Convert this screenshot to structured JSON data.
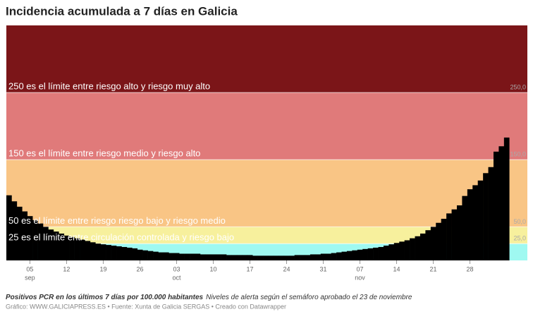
{
  "chart_data": {
    "type": "step-area",
    "title": "Incidencia acumulada a 7 días en Galicia",
    "values": [
      97,
      88,
      80,
      73,
      66,
      60,
      55,
      50,
      46,
      43,
      40,
      37,
      35,
      33,
      31,
      29,
      27,
      25,
      24,
      23,
      22,
      21,
      20,
      19,
      18,
      16,
      15,
      14,
      13,
      12,
      12,
      11,
      11,
      10,
      10,
      10,
      10,
      9,
      9,
      9,
      9,
      9,
      8,
      8,
      8,
      8,
      8,
      7,
      7,
      7,
      7,
      7,
      7,
      7,
      7,
      8,
      8,
      8,
      9,
      9,
      10,
      10,
      11,
      12,
      13,
      14,
      15,
      16,
      17,
      18,
      19,
      20,
      22,
      24,
      26,
      28,
      30,
      33,
      36,
      40,
      45,
      50,
      56,
      62,
      70,
      76,
      82,
      96,
      106,
      112,
      119,
      130,
      139,
      162,
      170,
      183
    ],
    "color": "#000000",
    "ylim": [
      0,
      350
    ],
    "yticks": [
      {
        "value": 25,
        "label": "25,0"
      },
      {
        "value": 50,
        "label": "50,0"
      },
      {
        "value": 150,
        "label": "150,0"
      },
      {
        "value": 250,
        "label": "250,0"
      }
    ],
    "xticks": [
      {
        "value": 4,
        "label": "05"
      },
      {
        "value": 11,
        "label": "12"
      },
      {
        "value": 18,
        "label": "19"
      },
      {
        "value": 25,
        "label": "26"
      },
      {
        "value": 32,
        "label": "03"
      },
      {
        "value": 39,
        "label": "10"
      },
      {
        "value": 46,
        "label": "17"
      },
      {
        "value": 53,
        "label": "24"
      },
      {
        "value": 60,
        "label": "31"
      },
      {
        "value": 67,
        "label": "07"
      },
      {
        "value": 74,
        "label": "14"
      },
      {
        "value": 81,
        "label": "21"
      },
      {
        "value": 88,
        "label": "28"
      }
    ],
    "xmonths": [
      {
        "value": 4,
        "label": "sep"
      },
      {
        "value": 32,
        "label": "oct"
      },
      {
        "value": 67,
        "label": "nov"
      }
    ],
    "bands": [
      {
        "from": 0,
        "to": 25,
        "color": "#9ff9f1"
      },
      {
        "from": 25,
        "to": 50,
        "color": "#f7f09d",
        "label": "25 es el límite entre circulación controlada y riesgo bajo"
      },
      {
        "from": 50,
        "to": 150,
        "color": "#f9c585",
        "label": "50 es el límite entre riesgo riesgo bajo y riesgo medio"
      },
      {
        "from": 150,
        "to": 250,
        "color": "#e07a7a",
        "label": "150 es el límite entre riesgo medio y riesgo alto"
      },
      {
        "from": 250,
        "to": 350,
        "color": "#7b1518",
        "label": "250 es el límite entre riesgo alto y riesgo muy alto"
      }
    ],
    "notes": {
      "description": "Positivos PCR en los últimos 7 días por 100.000 habitantes",
      "detail": "Niveles de alerta según el semáforo aprobado el 23 de noviembre",
      "source": "Gráfico: WWW.GALICIAPRESS.ES • Fuente: Xunta de Galicia SERGAS • Creado con Datawrapper"
    }
  }
}
